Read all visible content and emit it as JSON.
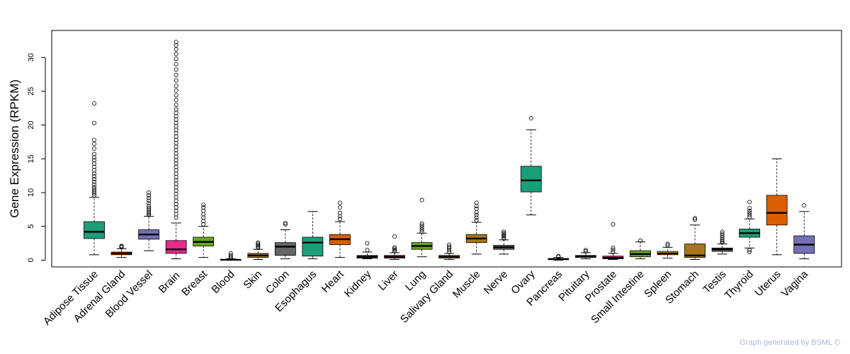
{
  "chart_data": {
    "type": "box",
    "ylabel": "Gene Expression (RPKM)",
    "ylim": [
      -1,
      34
    ],
    "yticks": [
      0,
      5,
      10,
      15,
      20,
      25,
      30
    ],
    "highlight_category": "Brain",
    "highlight_color": "#ff0000",
    "credit": "Graph generated by BSML ©",
    "grid": false,
    "legend": "none",
    "categories": [
      {
        "name": "Adipose Tissue",
        "color": "#1b9e77",
        "whisker_low": 0.8,
        "q1": 3.2,
        "median": 4.2,
        "q3": 5.7,
        "whisker_high": 9.3,
        "outliers": [
          9.6,
          9.9,
          10.2,
          10.5,
          10.8,
          11.2,
          11.6,
          12.0,
          12.4,
          12.8,
          13.3,
          13.8,
          14.3,
          14.8,
          15.2,
          15.7,
          16.5,
          17.2,
          17.8,
          20.3,
          23.2
        ]
      },
      {
        "name": "Adrenal Gland",
        "color": "#d95f02",
        "whisker_low": 0.4,
        "q1": 0.8,
        "median": 1.0,
        "q3": 1.2,
        "whisker_high": 1.7,
        "outliers": [
          1.9,
          2.0,
          2.1
        ]
      },
      {
        "name": "Blood Vessel",
        "color": "#7570b3",
        "whisker_low": 1.4,
        "q1": 3.1,
        "median": 3.8,
        "q3": 4.5,
        "whisker_high": 6.5,
        "outliers": [
          6.7,
          6.9,
          7.1,
          7.4,
          7.7,
          8.0,
          8.4,
          8.8,
          9.2,
          9.6,
          10.0
        ]
      },
      {
        "name": "Brain",
        "color": "#e7298a",
        "whisker_low": 0.2,
        "q1": 1.0,
        "median": 1.6,
        "q3": 2.9,
        "whisker_high": 5.5,
        "outliers": [
          6.3,
          6.8,
          7.3,
          7.8,
          8.3,
          8.8,
          9.3,
          9.8,
          10.3,
          10.8,
          11.3,
          11.8,
          12.3,
          12.8,
          13.3,
          13.8,
          14.3,
          14.8,
          15.3,
          15.8,
          16.3,
          16.8,
          17.3,
          17.8,
          18.3,
          18.8,
          19.3,
          19.8,
          20.3,
          20.8,
          21.3,
          21.8,
          22.3,
          23.0,
          23.7,
          24.4,
          25.1,
          25.8,
          26.6,
          27.4,
          28.2,
          29.0,
          29.8,
          30.5,
          31.2,
          31.8,
          32.3
        ]
      },
      {
        "name": "Breast",
        "color": "#66a61e",
        "whisker_low": 0.4,
        "q1": 2.1,
        "median": 2.7,
        "q3": 3.4,
        "whisker_high": 5.0,
        "outliers": [
          5.3,
          5.8,
          6.3,
          6.8,
          7.3,
          7.8,
          8.2
        ]
      },
      {
        "name": "Blood",
        "color": "#e6ab02",
        "whisker_low": 0.0,
        "q1": 0.0,
        "median": 0.05,
        "q3": 0.1,
        "whisker_high": 0.2,
        "outliers": [
          0.3,
          0.5,
          0.7,
          1.0
        ]
      },
      {
        "name": "Skin",
        "color": "#a6761d",
        "whisker_low": 0.1,
        "q1": 0.4,
        "median": 0.7,
        "q3": 1.0,
        "whisker_high": 1.6,
        "outliers": [
          1.8,
          2.0,
          2.2,
          2.4,
          2.6
        ]
      },
      {
        "name": "Colon",
        "color": "#666666",
        "whisker_low": 0.2,
        "q1": 0.7,
        "median": 2.0,
        "q3": 2.6,
        "whisker_high": 4.5,
        "outliers": [
          5.3,
          5.5
        ]
      },
      {
        "name": "Esophagus",
        "color": "#1b9e77",
        "whisker_low": 0.2,
        "q1": 0.6,
        "median": 2.6,
        "q3": 3.4,
        "whisker_high": 7.2,
        "outliers": []
      },
      {
        "name": "Heart",
        "color": "#d95f02",
        "whisker_low": 0.4,
        "q1": 2.3,
        "median": 3.1,
        "q3": 3.8,
        "whisker_high": 5.7,
        "outliers": [
          6.1,
          6.5,
          7.0,
          7.8,
          8.5
        ]
      },
      {
        "name": "Kidney",
        "color": "#7570b3",
        "whisker_low": 0.2,
        "q1": 0.3,
        "median": 0.5,
        "q3": 0.7,
        "whisker_high": 1.2,
        "outliers": [
          1.5,
          2.5
        ]
      },
      {
        "name": "Liver",
        "color": "#e7298a",
        "whisker_low": 0.1,
        "q1": 0.3,
        "median": 0.5,
        "q3": 0.7,
        "whisker_high": 1.1,
        "outliers": [
          1.3,
          1.5,
          1.7,
          1.9,
          3.5
        ]
      },
      {
        "name": "Lung",
        "color": "#66a61e",
        "whisker_low": 0.5,
        "q1": 1.6,
        "median": 2.1,
        "q3": 2.6,
        "whisker_high": 4.0,
        "outliers": [
          4.2,
          4.5,
          4.8,
          5.1,
          5.4,
          8.9
        ]
      },
      {
        "name": "Salivary Gland",
        "color": "#e6ab02",
        "whisker_low": 0.1,
        "q1": 0.3,
        "median": 0.5,
        "q3": 0.7,
        "whisker_high": 1.0,
        "outliers": [
          1.2,
          1.5,
          1.8,
          2.0,
          2.3
        ]
      },
      {
        "name": "Muscle",
        "color": "#a6761d",
        "whisker_low": 0.9,
        "q1": 2.6,
        "median": 3.2,
        "q3": 3.8,
        "whisker_high": 5.6,
        "outliers": [
          5.9,
          6.3,
          6.7,
          7.1,
          7.6,
          8.0,
          8.5
        ]
      },
      {
        "name": "Nerve",
        "color": "#666666",
        "whisker_low": 0.9,
        "q1": 1.6,
        "median": 1.9,
        "q3": 2.2,
        "whisker_high": 3.0,
        "outliers": [
          3.2,
          3.4,
          3.6,
          3.8,
          4.0,
          4.2
        ]
      },
      {
        "name": "Ovary",
        "color": "#1b9e77",
        "whisker_low": 6.7,
        "q1": 10.1,
        "median": 11.8,
        "q3": 13.9,
        "whisker_high": 19.3,
        "outliers": [
          21.0
        ]
      },
      {
        "name": "Pancreas",
        "color": "#d95f02",
        "whisker_low": 0.0,
        "q1": 0.1,
        "median": 0.15,
        "q3": 0.25,
        "whisker_high": 0.4,
        "outliers": [
          0.5,
          0.6
        ]
      },
      {
        "name": "Pituitary",
        "color": "#7570b3",
        "whisker_low": 0.2,
        "q1": 0.4,
        "median": 0.55,
        "q3": 0.7,
        "whisker_high": 1.1,
        "outliers": [
          1.3,
          1.5
        ]
      },
      {
        "name": "Prostate",
        "color": "#e7298a",
        "whisker_low": 0.1,
        "q1": 0.2,
        "median": 0.35,
        "q3": 0.6,
        "whisker_high": 1.0,
        "outliers": [
          1.2,
          1.5,
          1.8,
          5.3
        ]
      },
      {
        "name": "Small Intestine",
        "color": "#66a61e",
        "whisker_low": 0.2,
        "q1": 0.5,
        "median": 0.9,
        "q3": 1.4,
        "whisker_high": 2.7,
        "outliers": [
          2.9
        ]
      },
      {
        "name": "Spleen",
        "color": "#e6ab02",
        "whisker_low": 0.3,
        "q1": 0.8,
        "median": 1.0,
        "q3": 1.3,
        "whisker_high": 1.9,
        "outliers": [
          2.2,
          2.4
        ]
      },
      {
        "name": "Stomach",
        "color": "#a6761d",
        "whisker_low": 0.1,
        "q1": 0.4,
        "median": 0.7,
        "q3": 2.4,
        "whisker_high": 5.2,
        "outliers": [
          6.0,
          6.2
        ]
      },
      {
        "name": "Testis",
        "color": "#666666",
        "whisker_low": 0.9,
        "q1": 1.3,
        "median": 1.6,
        "q3": 1.8,
        "whisker_high": 2.4,
        "outliers": [
          2.6,
          2.8,
          3.0,
          3.3,
          3.6,
          3.9,
          4.2
        ]
      },
      {
        "name": "Thyroid",
        "color": "#1b9e77",
        "whisker_low": 1.8,
        "q1": 3.4,
        "median": 4.0,
        "q3": 4.6,
        "whisker_high": 6.1,
        "outliers": [
          6.4,
          6.7,
          7.0,
          7.3,
          7.7,
          8.6,
          1.2,
          1.5
        ]
      },
      {
        "name": "Uterus",
        "color": "#d95f02",
        "whisker_low": 0.8,
        "q1": 5.2,
        "median": 7.0,
        "q3": 9.6,
        "whisker_high": 15.0,
        "outliers": []
      },
      {
        "name": "Vagina",
        "color": "#7570b3",
        "whisker_low": 0.2,
        "q1": 1.0,
        "median": 2.3,
        "q3": 3.6,
        "whisker_high": 7.2,
        "outliers": [
          8.1
        ]
      }
    ]
  }
}
